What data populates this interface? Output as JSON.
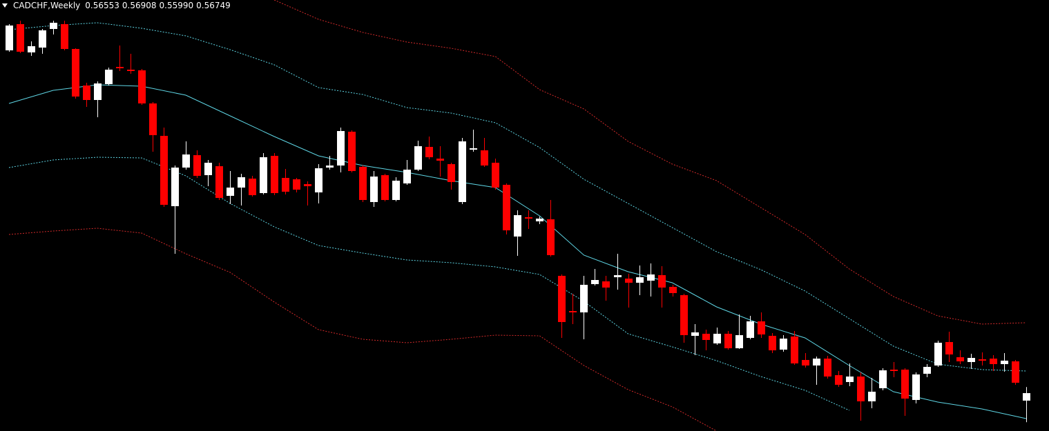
{
  "chart_data": {
    "type": "candlestick",
    "title": "CADCHF,Weekly",
    "last_labels": [
      "0.56553",
      "0.56908",
      "0.55990",
      "0.56749"
    ],
    "xlim": [
      -0.81,
      94.07
    ],
    "ylim": [
      0.5576,
      0.6701
    ],
    "up_color": "#ffffff",
    "down_color": "#ff0000",
    "open": [
      0.65696,
      0.6638,
      0.65642,
      0.65768,
      0.66254,
      0.6638,
      0.65732,
      0.64778,
      0.644,
      0.64814,
      0.65264,
      0.65192,
      0.65174,
      0.6431,
      0.63464,
      0.61628,
      0.62636,
      0.6296,
      0.62438,
      0.62672,
      0.61898,
      0.62114,
      0.62348,
      0.6197,
      0.62942,
      0.62366,
      0.6233,
      0.62204,
      0.61988,
      0.62636,
      0.6269,
      0.63572,
      0.62654,
      0.61736,
      0.62438,
      0.6179,
      0.62222,
      0.62582,
      0.63176,
      0.6287,
      0.62726,
      0.61736,
      0.63104,
      0.63086,
      0.62762,
      0.62186,
      0.60836,
      0.6134,
      0.61232,
      0.61286,
      0.5981,
      0.58892,
      0.58856,
      0.59594,
      0.59666,
      0.59774,
      0.59738,
      0.5963,
      0.59684,
      0.59828,
      0.59522,
      0.59306,
      0.58244,
      0.58298,
      0.58046,
      0.58298,
      0.5792,
      0.5819,
      0.58622,
      0.58244,
      0.57884,
      0.58226,
      0.57614,
      0.5747,
      0.5765,
      0.57218,
      0.57038,
      0.57182,
      0.56534,
      0.56876,
      0.57362,
      0.57362,
      0.5657,
      0.57254,
      0.5747,
      0.58082,
      0.57686,
      0.5756,
      0.57632,
      0.5765,
      0.57506,
      0.57578,
      0.56553
    ],
    "high": [
      0.6638,
      0.6647,
      0.6593,
      0.66254,
      0.6647,
      0.6647,
      0.6575,
      0.6485,
      0.64886,
      0.65246,
      0.65822,
      0.65606,
      0.6521,
      0.64346,
      0.6368,
      0.6269,
      0.6332,
      0.63086,
      0.62834,
      0.62762,
      0.62546,
      0.62474,
      0.6242,
      0.63014,
      0.63014,
      0.626,
      0.62366,
      0.62276,
      0.62726,
      0.62942,
      0.6368,
      0.63608,
      0.6269,
      0.62546,
      0.62474,
      0.62384,
      0.62834,
      0.63338,
      0.63446,
      0.63194,
      0.62762,
      0.6341,
      0.63626,
      0.6341,
      0.6287,
      0.62222,
      0.6152,
      0.6152,
      0.61358,
      0.6179,
      0.59846,
      0.59342,
      0.5981,
      0.5999,
      0.5981,
      0.60386,
      0.59864,
      0.6008,
      0.60134,
      0.60062,
      0.59576,
      0.59342,
      0.5855,
      0.58406,
      0.5846,
      0.5837,
      0.58802,
      0.58766,
      0.58856,
      0.58316,
      0.58262,
      0.5837,
      0.57794,
      0.57704,
      0.57722,
      0.57326,
      0.57524,
      0.5729,
      0.57146,
      0.57398,
      0.5756,
      0.57398,
      0.5729,
      0.57506,
      0.58118,
      0.58352,
      0.57866,
      0.57776,
      0.57812,
      0.5774,
      0.57794,
      0.57614,
      0.56908
    ],
    "low": [
      0.6566,
      0.65624,
      0.65552,
      0.65606,
      0.6611,
      0.65696,
      0.64436,
      0.6422,
      0.6395,
      0.64778,
      0.65156,
      0.65084,
      0.64274,
      0.6305,
      0.6161,
      0.60386,
      0.62582,
      0.62366,
      0.6215,
      0.6179,
      0.61682,
      0.61646,
      0.6188,
      0.61934,
      0.61916,
      0.61934,
      0.61988,
      0.61646,
      0.617,
      0.62582,
      0.6251,
      0.6251,
      0.61736,
      0.6161,
      0.61754,
      0.61754,
      0.62186,
      0.62546,
      0.62852,
      0.62402,
      0.6206,
      0.61682,
      0.6305,
      0.62654,
      0.6206,
      0.6089,
      0.60332,
      0.61034,
      0.6116,
      0.60314,
      0.5819,
      0.5855,
      0.58154,
      0.59558,
      0.59162,
      0.5945,
      0.58982,
      0.59306,
      0.5927,
      0.58982,
      0.5927,
      0.58064,
      0.5774,
      0.57866,
      0.5801,
      0.57884,
      0.57902,
      0.58154,
      0.5819,
      0.57794,
      0.5783,
      0.57488,
      0.57416,
      0.56966,
      0.57128,
      0.56912,
      0.5693,
      0.5603,
      0.56354,
      0.56822,
      0.57164,
      0.56156,
      0.5648,
      0.57164,
      0.57434,
      0.5756,
      0.57506,
      0.5738,
      0.5747,
      0.57326,
      0.57308,
      0.56966,
      0.5599
    ],
    "close": [
      0.66344,
      0.6566,
      0.65804,
      0.66218,
      0.66416,
      0.65732,
      0.6449,
      0.644,
      0.64832,
      0.65192,
      0.65228,
      0.65156,
      0.6431,
      0.63482,
      0.61664,
      0.62636,
      0.62978,
      0.6242,
      0.62762,
      0.61844,
      0.62114,
      0.62384,
      0.61916,
      0.62906,
      0.6197,
      0.62006,
      0.6206,
      0.6215,
      0.62618,
      0.6269,
      0.6359,
      0.62546,
      0.6179,
      0.62402,
      0.6179,
      0.62294,
      0.62582,
      0.63194,
      0.62906,
      0.62816,
      0.62258,
      0.6332,
      0.6314,
      0.6269,
      0.62114,
      0.60998,
      0.61394,
      0.61304,
      0.61304,
      0.6035,
      0.58604,
      0.58856,
      0.59576,
      0.59702,
      0.59504,
      0.59828,
      0.5963,
      0.59774,
      0.59846,
      0.59504,
      0.5936,
      0.58262,
      0.58334,
      0.58136,
      0.58298,
      0.5792,
      0.58262,
      0.58622,
      0.5828,
      0.57866,
      0.58172,
      0.57524,
      0.5747,
      0.5765,
      0.57182,
      0.56966,
      0.57182,
      0.56534,
      0.56786,
      0.57344,
      0.57326,
      0.56606,
      0.57236,
      0.57434,
      0.58064,
      0.57758,
      0.57578,
      0.57668,
      0.57596,
      0.57506,
      0.57596,
      0.5702,
      0.56749
    ],
    "bands": [
      {
        "color": "#5fd7e6",
        "dashed": false,
        "x": [
          0,
          4,
          8,
          12,
          16,
          20,
          24,
          28,
          32,
          36,
          40,
          44,
          48,
          52,
          56,
          60,
          64,
          68,
          72,
          76,
          80,
          84,
          88,
          92
        ],
        "values": [
          0.6431,
          0.64652,
          0.64796,
          0.6476,
          0.64526,
          0.63986,
          0.63446,
          0.62942,
          0.6269,
          0.6251,
          0.62294,
          0.62114,
          0.61376,
          0.6035,
          0.59918,
          0.5963,
          0.59,
          0.5855,
          0.5819,
          0.5747,
          0.56786,
          0.56516,
          0.56336,
          0.56084
        ]
      },
      {
        "color": "#5fd7e6",
        "dashed": true,
        "x": [
          0,
          4,
          8,
          12,
          16,
          20,
          24,
          28,
          32,
          36,
          40,
          44,
          48,
          52,
          56,
          60,
          64,
          68,
          72,
          76,
          80,
          84,
          88,
          92
        ],
        "values": [
          0.66236,
          0.66344,
          0.66416,
          0.66272,
          0.66074,
          0.65714,
          0.65318,
          0.64724,
          0.64544,
          0.64202,
          0.64058,
          0.63806,
          0.63158,
          0.6233,
          0.617,
          0.6107,
          0.6044,
          0.59972,
          0.59414,
          0.58694,
          0.57974,
          0.57506,
          0.57362,
          0.57326
        ]
      },
      {
        "color": "#5fd7e6",
        "dashed": true,
        "x": [
          0,
          4,
          8,
          12,
          16,
          20,
          24,
          28,
          32,
          36,
          40,
          44,
          48,
          52,
          56,
          60,
          64,
          68,
          72,
          76,
          80,
          84,
          88,
          92
        ],
        "values": [
          0.62636,
          0.62834,
          0.62906,
          0.62888,
          0.6242,
          0.617,
          0.61088,
          0.60602,
          0.60404,
          0.60224,
          0.60152,
          0.60044,
          0.59846,
          0.59144,
          0.58298,
          0.57956,
          0.57596,
          0.57182,
          0.56822,
          0.563,
          null,
          null,
          null,
          null
        ]
      },
      {
        "color": "#d42a2a",
        "dashed": true,
        "x": [
          0,
          4,
          8,
          12,
          16,
          20,
          24,
          28,
          32,
          36,
          40,
          44,
          48,
          52,
          56,
          60,
          64,
          68,
          72,
          76,
          80,
          84,
          88,
          92
        ],
        "values": [
          null,
          null,
          null,
          null,
          null,
          null,
          0.6701,
          0.66506,
          0.66164,
          0.65912,
          0.6575,
          0.65534,
          0.6467,
          0.64166,
          0.6332,
          0.62726,
          0.62294,
          0.61592,
          0.6089,
          0.5999,
          0.5927,
          0.58766,
          0.5855,
          0.58586
        ]
      },
      {
        "color": "#d42a2a",
        "dashed": true,
        "x": [
          0,
          4,
          8,
          12,
          16,
          20,
          24,
          28,
          32,
          36,
          40,
          44,
          48,
          52,
          56,
          60,
          64,
          68,
          72,
          76,
          80,
          84,
          88,
          92
        ],
        "values": [
          0.6089,
          0.6098,
          0.61052,
          0.60926,
          0.60386,
          0.599,
          0.59126,
          0.58406,
          0.58154,
          0.58064,
          0.58154,
          0.58262,
          0.58244,
          0.5747,
          0.5684,
          0.5639,
          0.5576,
          null,
          null,
          null,
          null,
          null,
          null,
          null
        ]
      }
    ]
  }
}
